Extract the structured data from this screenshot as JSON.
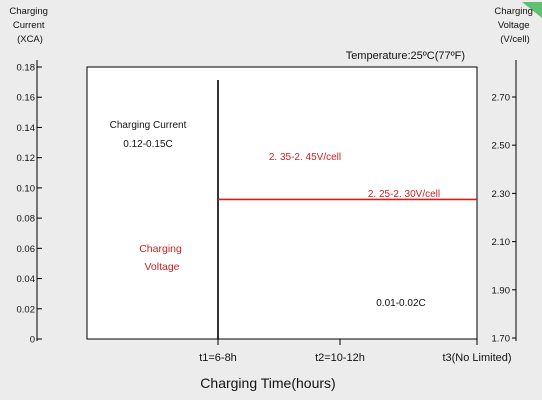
{
  "chart_data": {
    "type": "line",
    "title": "",
    "xlabel": "Charging Time(hours)",
    "left_axis": {
      "label_lines": [
        "Charging",
        "Current",
        "(XCA)"
      ],
      "ticks": [
        "0.18",
        "0.16",
        "0.14",
        "0.12",
        "0.10",
        "0.08",
        "0.06",
        "0.04",
        "0.02",
        "0"
      ],
      "ylim": [
        0,
        0.18
      ]
    },
    "right_axis": {
      "label_lines": [
        "Charging",
        "Voltage",
        "(V/cell)"
      ],
      "ticks": [
        "2.70",
        "2.50",
        "2.30",
        "2.10",
        "1.90",
        "1.70"
      ],
      "ylim": [
        1.7,
        2.7
      ]
    },
    "x_ticks": [
      "t1=6-8h",
      "t2=10-12h",
      "t3(No Limited)"
    ],
    "temperature_note": "Temperature:25ºC(77ºF)",
    "annotations": {
      "current_title": "Charging Current",
      "current_range": "0.12-0.15C",
      "voltage_title_lines": [
        "Charging",
        "Voltage"
      ],
      "stage1_voltage": "2. 35-2. 45V/cell",
      "stage2_voltage": "2. 25-2. 30V/cell",
      "float_current": "0.01-0.02C"
    },
    "series": [
      {
        "name": "",
        "axis": "right",
        "x": [
          "t1=6-8h",
          "t3(No Limited)"
        ],
        "values": [
          2.275,
          2.275
        ]
      }
    ],
    "markers": [
      {
        "x": "t1=6-8h",
        "y_from": 0,
        "y_to": 0.18
      }
    ],
    "colors": {
      "voltage": "#cc1f1f",
      "text": "#111111",
      "axis": "#000000"
    }
  }
}
